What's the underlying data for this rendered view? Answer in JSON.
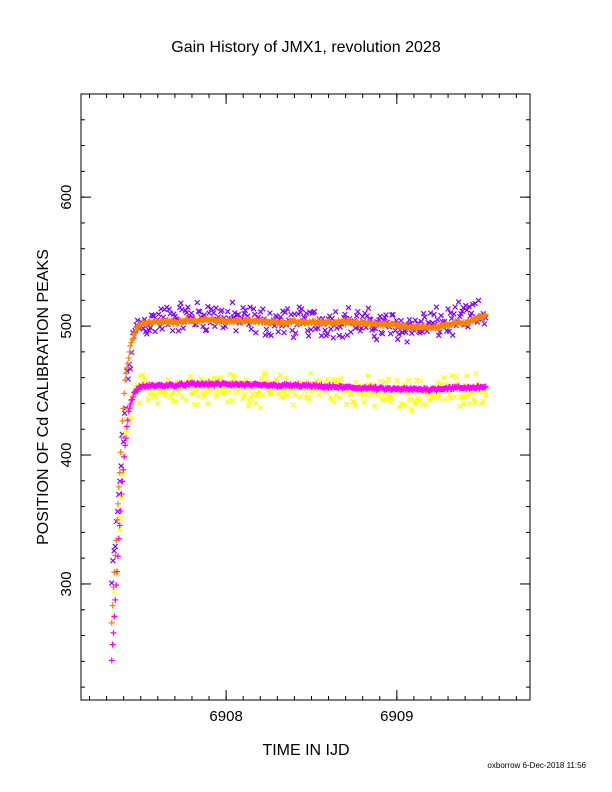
{
  "chart_data": {
    "type": "scatter",
    "title": "Gain History of JMX1, revolution 2028",
    "xlabel": "TIME IN IJD",
    "ylabel": "POSITION OF Cd CALIBRATION PEAKS",
    "xlim": [
      6907.15,
      6909.78
    ],
    "ylim": [
      210,
      680
    ],
    "x_ticks": [
      6908,
      6909
    ],
    "y_ticks": [
      300,
      400,
      500,
      600
    ],
    "x_minor_step": 0.1,
    "y_minor_step": 20,
    "grid": false,
    "legend": "none",
    "series": [
      {
        "marker": "x",
        "color": "#7f00ff",
        "spread": 9,
        "points": [
          [
            6907.33,
            300
          ],
          [
            6907.36,
            345
          ],
          [
            6907.38,
            385
          ],
          [
            6907.4,
            420
          ],
          [
            6907.42,
            455
          ],
          [
            6907.45,
            485
          ],
          [
            6907.48,
            500
          ],
          [
            6907.55,
            503
          ],
          [
            6907.7,
            507
          ],
          [
            6907.9,
            508
          ],
          [
            6908.1,
            505
          ],
          [
            6908.3,
            503
          ],
          [
            6908.5,
            503
          ],
          [
            6908.7,
            504
          ],
          [
            6908.85,
            501
          ],
          [
            6909.0,
            500
          ],
          [
            6909.1,
            499
          ],
          [
            6909.2,
            502
          ],
          [
            6909.3,
            503
          ],
          [
            6909.4,
            506
          ],
          [
            6909.52,
            509
          ]
        ]
      },
      {
        "marker": "x",
        "color": "#ffff00",
        "spread": 9,
        "points": [
          [
            6907.34,
            280
          ],
          [
            6907.37,
            330
          ],
          [
            6907.39,
            375
          ],
          [
            6907.41,
            410
          ],
          [
            6907.44,
            440
          ],
          [
            6907.48,
            450
          ],
          [
            6907.55,
            452
          ],
          [
            6907.7,
            452
          ],
          [
            6907.9,
            453
          ],
          [
            6908.1,
            451
          ],
          [
            6908.3,
            450
          ],
          [
            6908.5,
            452
          ],
          [
            6908.7,
            451
          ],
          [
            6908.85,
            448
          ],
          [
            6909.0,
            447
          ],
          [
            6909.1,
            447
          ],
          [
            6909.2,
            448
          ],
          [
            6909.3,
            450
          ],
          [
            6909.4,
            451
          ],
          [
            6909.52,
            452
          ]
        ]
      },
      {
        "marker": "+",
        "color": "#ff8000",
        "spread": 1.2,
        "points": [
          [
            6907.33,
            270
          ],
          [
            6907.35,
            320
          ],
          [
            6907.37,
            370
          ],
          [
            6907.39,
            420
          ],
          [
            6907.41,
            460
          ],
          [
            6907.44,
            485
          ],
          [
            6907.47,
            497
          ],
          [
            6907.5,
            502
          ],
          [
            6907.6,
            503
          ],
          [
            6907.7,
            503
          ],
          [
            6907.8,
            504
          ],
          [
            6907.9,
            505
          ],
          [
            6908.0,
            504
          ],
          [
            6908.1,
            504
          ],
          [
            6908.3,
            503
          ],
          [
            6908.5,
            503
          ],
          [
            6908.7,
            503
          ],
          [
            6908.85,
            502
          ],
          [
            6909.0,
            501
          ],
          [
            6909.1,
            499
          ],
          [
            6909.2,
            499
          ],
          [
            6909.3,
            501
          ],
          [
            6909.4,
            503
          ],
          [
            6909.52,
            508
          ]
        ]
      },
      {
        "marker": "+",
        "color": "#ff00ff",
        "spread": 1.0,
        "points": [
          [
            6907.33,
            240
          ],
          [
            6907.35,
            285
          ],
          [
            6907.37,
            330
          ],
          [
            6907.39,
            375
          ],
          [
            6907.41,
            410
          ],
          [
            6907.43,
            435
          ],
          [
            6907.46,
            448
          ],
          [
            6907.5,
            453
          ],
          [
            6907.6,
            454
          ],
          [
            6907.7,
            454
          ],
          [
            6907.8,
            455
          ],
          [
            6907.9,
            455
          ],
          [
            6908.0,
            455
          ],
          [
            6908.2,
            454
          ],
          [
            6908.4,
            454
          ],
          [
            6908.6,
            453
          ],
          [
            6908.8,
            452
          ],
          [
            6909.0,
            451
          ],
          [
            6909.2,
            451
          ],
          [
            6909.3,
            452
          ],
          [
            6909.4,
            452
          ],
          [
            6909.52,
            453
          ]
        ]
      }
    ]
  },
  "footer": {
    "credit": "oxborrow  6-Dec-2018 11:56"
  }
}
